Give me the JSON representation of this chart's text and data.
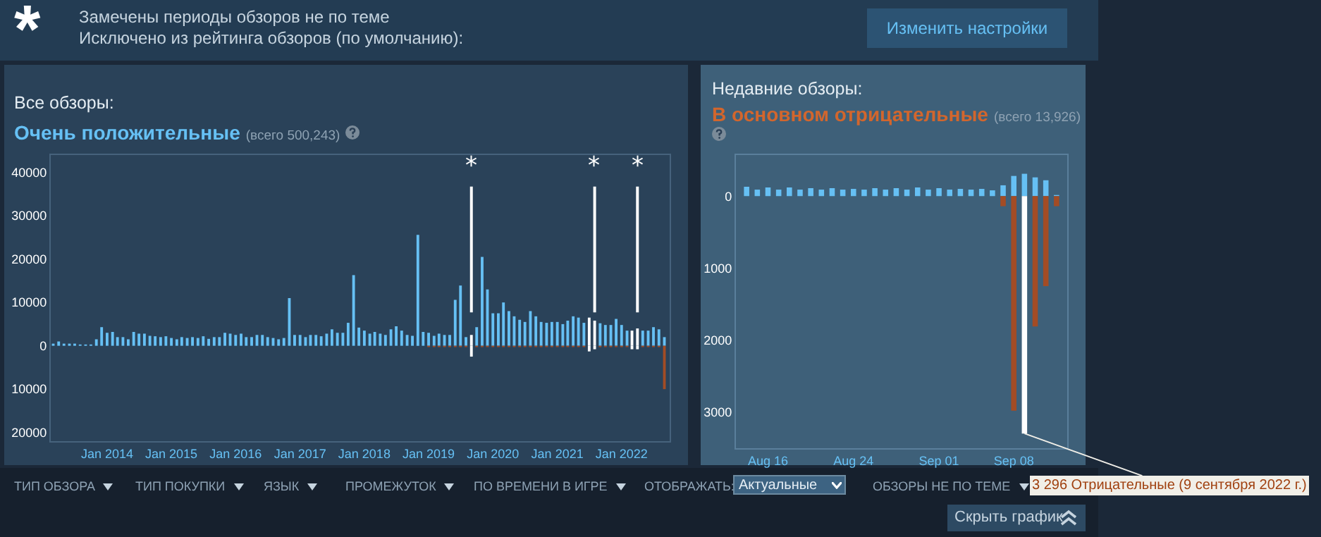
{
  "chart_data": [
    {
      "type": "bar",
      "title": "Все обзоры:",
      "subtitle": "Очень положительные",
      "annotations": [
        "*",
        "Замечены периоды обзоров не по теме",
        "Исключено из рейтинга обзоров (по умолчанию):",
        "Изменить настройки",
        "(всего 500,243)",
        "ТИП ОБЗОРА",
        "ТИП ПОКУПКИ",
        "ЯЗЫК",
        "ПРОМЕЖУТОК",
        "ПО ВРЕМЕНИ В ИГРЕ",
        "ОТОБРАЖАТЬ:",
        "Актуальные",
        "ОБЗОРЫ НЕ ПО ТЕМЕ",
        "Скрыть график"
      ],
      "x": [
        "2013-03",
        "2013-04",
        "2013-05",
        "2013-06",
        "2013-07",
        "2013-08",
        "2013-09",
        "2013-10",
        "2013-11",
        "2013-12",
        "2014-01",
        "2014-02",
        "2014-03",
        "2014-04",
        "2014-05",
        "2014-06",
        "2014-07",
        "2014-08",
        "2014-09",
        "2014-10",
        "2014-11",
        "2014-12",
        "2015-01",
        "2015-02",
        "2015-03",
        "2015-04",
        "2015-05",
        "2015-06",
        "2015-07",
        "2015-08",
        "2015-09",
        "2015-10",
        "2015-11",
        "2015-12",
        "2016-01",
        "2016-02",
        "2016-03",
        "2016-04",
        "2016-05",
        "2016-06",
        "2016-07",
        "2016-08",
        "2016-09",
        "2016-10",
        "2016-11",
        "2016-12",
        "2017-01",
        "2017-02",
        "2017-03",
        "2017-04",
        "2017-05",
        "2017-06",
        "2017-07",
        "2017-08",
        "2017-09",
        "2017-10",
        "2017-11",
        "2017-12",
        "2018-01",
        "2018-02",
        "2018-03",
        "2018-04",
        "2018-05",
        "2018-06",
        "2018-07",
        "2018-08",
        "2018-09",
        "2018-10",
        "2018-11",
        "2018-12",
        "2019-01",
        "2019-02",
        "2019-03",
        "2019-04",
        "2019-05",
        "2019-06",
        "2019-07",
        "2019-08",
        "2019-09",
        "2019-10",
        "2019-11",
        "2019-12",
        "2020-01",
        "2020-02",
        "2020-03",
        "2020-04",
        "2020-05",
        "2020-06",
        "2020-07",
        "2020-08",
        "2020-09",
        "2020-10",
        "2020-11",
        "2020-12",
        "2021-01",
        "2021-02",
        "2021-03",
        "2021-04",
        "2021-05",
        "2021-06",
        "2021-07",
        "2021-08",
        "2021-09",
        "2021-10",
        "2021-11",
        "2021-12",
        "2022-01",
        "2022-02",
        "2022-03",
        "2022-04",
        "2022-05",
        "2022-06",
        "2022-07",
        "2022-08",
        "2022-09"
      ],
      "series": [
        {
          "color": "#66c0f4",
          "values": [
            500,
            1000,
            500,
            500,
            500,
            300,
            300,
            300,
            1500,
            4300,
            3000,
            3200,
            2000,
            2000,
            1500,
            3200,
            2800,
            2800,
            2300,
            2200,
            2000,
            2200,
            1800,
            1500,
            2000,
            1800,
            2000,
            1800,
            2200,
            1600,
            2000,
            2000,
            3000,
            2800,
            2500,
            2800,
            2000,
            2000,
            2500,
            2500,
            2000,
            1800,
            1500,
            1800,
            11000,
            2500,
            2500,
            2000,
            2500,
            2500,
            2200,
            2800,
            3800,
            3000,
            3000,
            5300,
            16300,
            4200,
            3500,
            2800,
            3200,
            2800,
            2500,
            3800,
            4500,
            3500,
            2500,
            2300,
            25600,
            3200,
            3000,
            2300,
            2800,
            2500,
            2500,
            10600,
            13900,
            2000,
            null,
            4300,
            20500,
            13000,
            7500,
            7500,
            10000,
            8000,
            6800,
            6000,
            5500,
            8000,
            6800,
            5500,
            5300,
            5500,
            5500,
            5000,
            5800,
            6800,
            6500,
            5300,
            null,
            null,
            5200,
            4800,
            4800,
            6200,
            4800,
            3500,
            null,
            null,
            3500,
            3500,
            4300,
            3800,
            2000
          ]
        },
        {
          "color": "#a34c25",
          "values": [
            null,
            null,
            null,
            null,
            null,
            null,
            null,
            null,
            null,
            null,
            null,
            null,
            null,
            null,
            null,
            null,
            null,
            null,
            null,
            null,
            null,
            null,
            null,
            null,
            null,
            null,
            null,
            null,
            null,
            null,
            null,
            null,
            null,
            null,
            null,
            null,
            null,
            null,
            null,
            null,
            null,
            null,
            null,
            null,
            null,
            null,
            null,
            null,
            null,
            null,
            null,
            null,
            null,
            null,
            null,
            null,
            null,
            null,
            null,
            null,
            null,
            null,
            null,
            null,
            null,
            null,
            null,
            null,
            null,
            null,
            -300,
            -300,
            -300,
            -300,
            -300,
            -300,
            -300,
            -300,
            null,
            -300,
            -300,
            -300,
            -300,
            -300,
            -300,
            -300,
            -300,
            -300,
            -300,
            -300,
            -300,
            -300,
            -300,
            -300,
            -300,
            -300,
            -300,
            -300,
            -300,
            -300,
            null,
            null,
            -300,
            -300,
            -300,
            -300,
            -300,
            -300,
            null,
            null,
            -300,
            -300,
            -300,
            -300,
            -10000
          ]
        },
        {
          "color": "#ffffff",
          "x": [
            "2019-09",
            "2021-07",
            "2021-08",
            "2022-03",
            "2022-04"
          ],
          "values": [
            2500,
            6500,
            5800,
            3500,
            4000
          ]
        },
        {
          "color": "#ffffff",
          "x": [
            "2019-09",
            "2021-07",
            "2021-08",
            "2022-03",
            "2022-04"
          ],
          "values": [
            -2500,
            -1300,
            -800,
            -800,
            -800
          ]
        }
      ],
      "ref_lines": [
        {
          "axis": "x",
          "value": "2019-09",
          "label": "*",
          "color": "#ffffff"
        },
        {
          "axis": "x",
          "value": "2021-08",
          "label": "*",
          "color": "#ffffff"
        },
        {
          "axis": "x",
          "value": "2022-04",
          "label": "*",
          "color": "#ffffff"
        }
      ],
      "xlim": [
        "2013-02-15",
        "2022-10-01"
      ],
      "xticks": [
        {
          "value": "2014-01",
          "label": "Jan 2014"
        },
        {
          "value": "2015-01",
          "label": "Jan 2015"
        },
        {
          "value": "2016-01",
          "label": "Jan 2016"
        },
        {
          "value": "2017-01",
          "label": "Jan 2017"
        },
        {
          "value": "2018-01",
          "label": "Jan 2018"
        },
        {
          "value": "2019-01",
          "label": "Jan 2019"
        },
        {
          "value": "2020-01",
          "label": "Jan 2020"
        },
        {
          "value": "2021-01",
          "label": "Jan 2021"
        },
        {
          "value": "2022-01",
          "label": "Jan 2022"
        }
      ],
      "ylim": [
        -22000,
        44000
      ],
      "yticks": [
        40000,
        30000,
        20000,
        10000,
        0,
        {
          "value": -10000,
          "label": "10000"
        },
        {
          "value": -20000,
          "label": "20000"
        }
      ]
    },
    {
      "type": "bar",
      "title": "Недавние обзоры:",
      "subtitle": "В основном отрицательные",
      "annotations": [
        "(всего 13,926)",
        {
          "text": "3 296 Отрицательные (9 сентября 2022 г.)",
          "x": "2022-09-09",
          "y": -3296
        }
      ],
      "x": [
        "2022-08-14",
        "2022-08-15",
        "2022-08-16",
        "2022-08-17",
        "2022-08-18",
        "2022-08-19",
        "2022-08-20",
        "2022-08-21",
        "2022-08-22",
        "2022-08-23",
        "2022-08-24",
        "2022-08-25",
        "2022-08-26",
        "2022-08-27",
        "2022-08-28",
        "2022-08-29",
        "2022-08-30",
        "2022-08-31",
        "2022-09-01",
        "2022-09-02",
        "2022-09-03",
        "2022-09-04",
        "2022-09-05",
        "2022-09-06",
        "2022-09-07",
        "2022-09-08",
        "2022-09-09",
        "2022-09-10",
        "2022-09-11",
        "2022-09-12"
      ],
      "series": [
        {
          "color": "#66c0f4",
          "values": [
            130,
            90,
            120,
            90,
            120,
            90,
            110,
            90,
            110,
            90,
            100,
            90,
            110,
            90,
            110,
            90,
            120,
            90,
            110,
            90,
            100,
            90,
            100,
            80,
            150,
            280,
            310,
            260,
            220,
            15
          ]
        },
        {
          "color": "#a34c25",
          "values": [
            null,
            null,
            null,
            null,
            null,
            null,
            null,
            null,
            null,
            null,
            null,
            null,
            null,
            null,
            null,
            null,
            null,
            null,
            null,
            null,
            null,
            null,
            null,
            null,
            -140,
            -2980,
            null,
            -1810,
            -1250,
            -140
          ]
        },
        {
          "color": "#ffffff",
          "x": [
            "2022-09-09"
          ],
          "values": [
            -3296
          ]
        }
      ],
      "xlim": [
        "2022-08-13",
        "2022-09-13"
      ],
      "xticks": [
        {
          "value": "2022-08-16",
          "label": "Aug 16"
        },
        {
          "value": "2022-08-24",
          "label": "Aug 24"
        },
        {
          "value": "2022-09-01",
          "label": "Sep 01"
        },
        {
          "value": "2022-09-08",
          "label": "Sep 08"
        }
      ],
      "ylim": [
        -3500,
        570
      ],
      "yticks": [
        0,
        {
          "value": -1000,
          "label": "1000"
        },
        {
          "value": -2000,
          "label": "2000"
        },
        {
          "value": -3000,
          "label": "3000"
        }
      ]
    }
  ]
}
